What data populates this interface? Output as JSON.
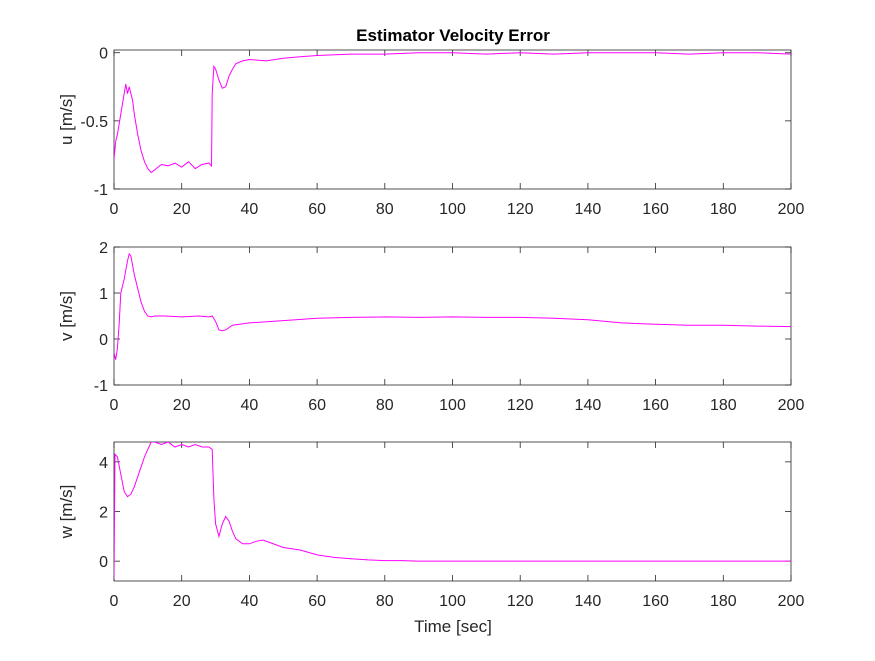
{
  "figure": {
    "title": "Estimator Velocity Error",
    "xlabel": "Time [sec]",
    "line_color": "#ff00ff"
  },
  "chart_data": [
    {
      "type": "line",
      "ylabel": "u [m/s]",
      "xlim": [
        0,
        200
      ],
      "ylim": [
        -1,
        0.02
      ],
      "xticks": [
        0,
        20,
        40,
        60,
        80,
        100,
        120,
        140,
        160,
        180,
        200
      ],
      "yticks": [
        -1,
        -0.5,
        0
      ],
      "ytick_labels": [
        "-1",
        "-0.5",
        "0"
      ],
      "grid": false,
      "series": [
        {
          "x": [
            0,
            0.5,
            1,
            2,
            3,
            3.5,
            4,
            4.5,
            5,
            5.5,
            6,
            7,
            8,
            9,
            10,
            11,
            12,
            14,
            16,
            18,
            20,
            22,
            24,
            26,
            28,
            28.8,
            29,
            29.5,
            30,
            31,
            32,
            33,
            34,
            35,
            36,
            38,
            40,
            45,
            50,
            55,
            60,
            70,
            80,
            90,
            100,
            110,
            120,
            130,
            140,
            150,
            160,
            170,
            180,
            190,
            200
          ],
          "y": [
            -0.78,
            -0.65,
            -0.6,
            -0.45,
            -0.3,
            -0.23,
            -0.3,
            -0.25,
            -0.3,
            -0.35,
            -0.45,
            -0.6,
            -0.72,
            -0.8,
            -0.85,
            -0.88,
            -0.86,
            -0.82,
            -0.83,
            -0.81,
            -0.84,
            -0.8,
            -0.85,
            -0.82,
            -0.81,
            -0.83,
            -0.3,
            -0.1,
            -0.12,
            -0.2,
            -0.26,
            -0.25,
            -0.17,
            -0.12,
            -0.08,
            -0.06,
            -0.05,
            -0.06,
            -0.04,
            -0.03,
            -0.02,
            -0.01,
            -0.01,
            0,
            0,
            -0.01,
            0,
            -0.01,
            0,
            0,
            0,
            -0.01,
            0,
            0,
            -0.01
          ]
        }
      ]
    },
    {
      "type": "line",
      "ylabel": "v [m/s]",
      "xlim": [
        0,
        200
      ],
      "ylim": [
        -1,
        2
      ],
      "xticks": [
        0,
        20,
        40,
        60,
        80,
        100,
        120,
        140,
        160,
        180,
        200
      ],
      "yticks": [
        -1,
        0,
        1,
        2
      ],
      "ytick_labels": [
        "-1",
        "0",
        "1",
        "2"
      ],
      "grid": false,
      "series": [
        {
          "x": [
            0,
            0.5,
            1,
            1.5,
            2,
            3,
            4,
            4.5,
            5,
            5.5,
            6,
            7,
            8,
            9,
            10,
            11,
            12,
            15,
            20,
            25,
            28,
            29,
            30,
            31,
            32,
            33,
            35,
            40,
            50,
            60,
            70,
            80,
            90,
            100,
            110,
            120,
            130,
            140,
            150,
            160,
            170,
            180,
            190,
            200
          ],
          "y": [
            -0.3,
            -0.45,
            -0.2,
            0.3,
            1.0,
            1.3,
            1.7,
            1.85,
            1.8,
            1.6,
            1.4,
            1.1,
            0.8,
            0.6,
            0.5,
            0.48,
            0.5,
            0.5,
            0.48,
            0.5,
            0.48,
            0.5,
            0.38,
            0.2,
            0.18,
            0.2,
            0.3,
            0.35,
            0.4,
            0.45,
            0.47,
            0.48,
            0.47,
            0.48,
            0.47,
            0.47,
            0.45,
            0.42,
            0.35,
            0.32,
            0.3,
            0.3,
            0.28,
            0.27
          ]
        }
      ]
    },
    {
      "type": "line",
      "ylabel": "w [m/s]",
      "xlim": [
        0,
        200
      ],
      "ylim": [
        -0.8,
        4.8
      ],
      "xticks": [
        0,
        20,
        40,
        60,
        80,
        100,
        120,
        140,
        160,
        180,
        200
      ],
      "yticks": [
        0,
        2,
        4
      ],
      "ytick_labels": [
        "0",
        "2",
        "4"
      ],
      "grid": false,
      "series": [
        {
          "x": [
            0,
            0.3,
            1,
            2,
            3,
            4,
            5,
            6,
            7,
            8,
            9,
            10,
            11,
            12,
            14,
            16,
            18,
            20,
            22,
            24,
            26,
            28,
            29,
            29.5,
            30,
            31,
            32,
            33,
            34,
            35,
            36,
            38,
            40,
            42,
            44,
            46,
            48,
            50,
            55,
            60,
            65,
            70,
            75,
            80,
            85,
            90,
            100,
            110,
            120,
            130,
            140,
            150,
            160,
            170,
            180,
            190,
            200
          ],
          "y": [
            -0.7,
            4.3,
            4.2,
            3.5,
            2.8,
            2.6,
            2.7,
            3.0,
            3.4,
            3.8,
            4.2,
            4.5,
            4.8,
            4.8,
            4.7,
            4.8,
            4.6,
            4.7,
            4.6,
            4.7,
            4.6,
            4.6,
            4.5,
            2.5,
            1.5,
            1.0,
            1.5,
            1.8,
            1.6,
            1.2,
            0.9,
            0.7,
            0.7,
            0.8,
            0.85,
            0.75,
            0.65,
            0.55,
            0.45,
            0.25,
            0.15,
            0.1,
            0.05,
            0.02,
            0.02,
            0.0,
            0.0,
            0.0,
            0.0,
            0.0,
            0.0,
            0.0,
            0.0,
            0.0,
            0.0,
            0.0,
            0.0
          ]
        }
      ]
    }
  ]
}
